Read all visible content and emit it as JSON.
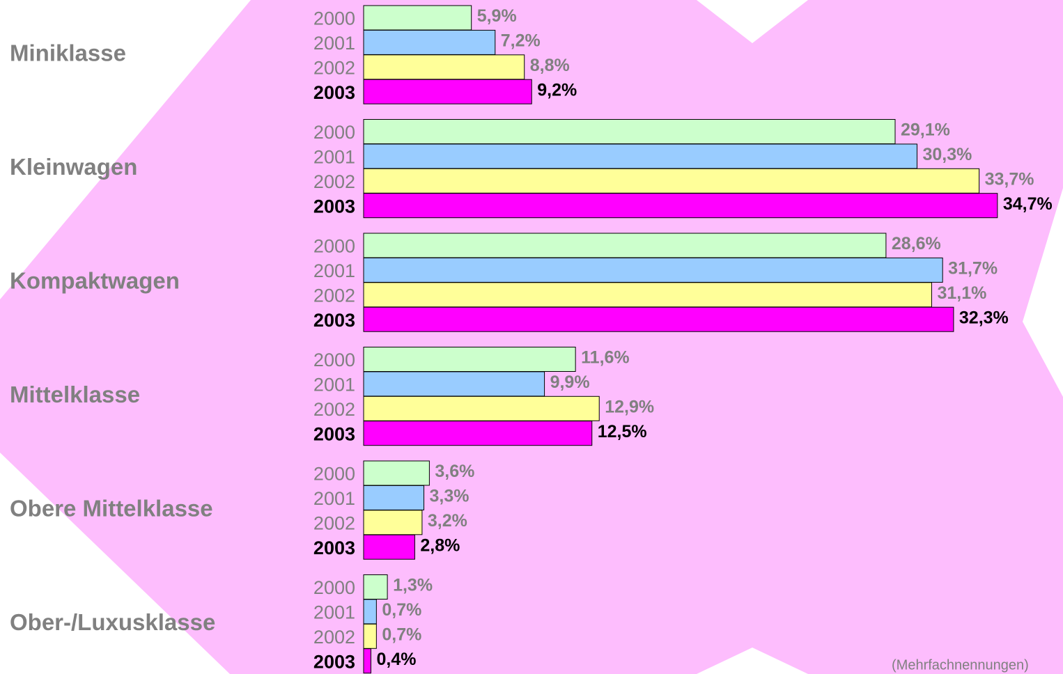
{
  "chart_data": {
    "type": "bar",
    "orientation": "horizontal",
    "categories": [
      "Miniklasse",
      "Kleinwagen",
      "Kompaktwagen",
      "Mittelklasse",
      "Obere Mittelklasse",
      "Ober-/Luxusklasse"
    ],
    "series": [
      {
        "name": "2000",
        "color": "#ccffcc",
        "values": [
          5.9,
          29.1,
          28.6,
          11.6,
          3.6,
          1.3
        ],
        "value_labels": [
          "5,9%",
          "29,1%",
          "28,6%",
          "11,6%",
          "3,6%",
          "1,3%"
        ]
      },
      {
        "name": "2001",
        "color": "#99ccff",
        "values": [
          7.2,
          30.3,
          31.7,
          9.9,
          3.3,
          0.7
        ],
        "value_labels": [
          "7,2%",
          "30,3%",
          "31,7%",
          "9,9%",
          "3,3%",
          "0,7%"
        ]
      },
      {
        "name": "2002",
        "color": "#ffff99",
        "values": [
          8.8,
          33.7,
          31.1,
          12.9,
          3.2,
          0.7
        ],
        "value_labels": [
          "8,8%",
          "33,7%",
          "31,1%",
          "12,9%",
          "3,2%",
          "0,7%"
        ]
      },
      {
        "name": "2003",
        "color": "#ff00ff",
        "values": [
          9.2,
          34.7,
          32.3,
          12.5,
          2.8,
          0.4
        ],
        "value_labels": [
          "9,2%",
          "34,7%",
          "32,3%",
          "12,5%",
          "2,8%",
          "0,4%"
        ]
      }
    ],
    "annotation": "(Mehrfachnennungen)"
  }
}
